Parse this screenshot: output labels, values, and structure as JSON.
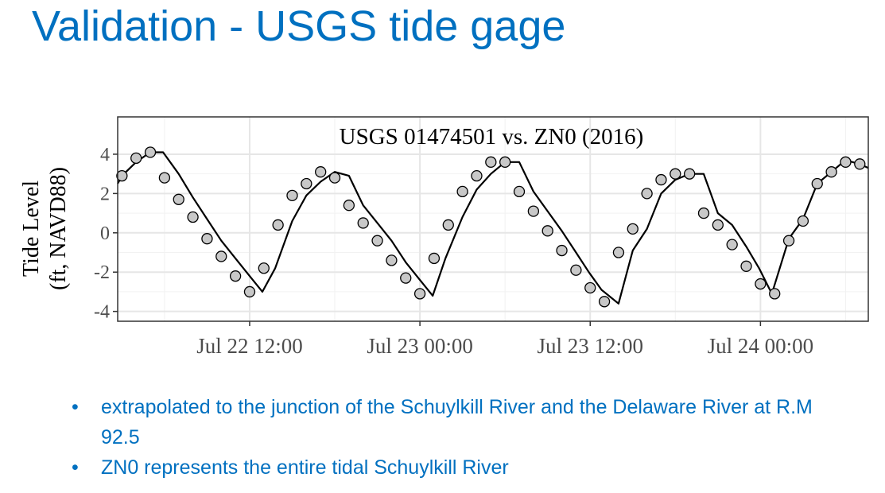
{
  "slide": {
    "title": "Validation - USGS tide gage",
    "bullets": [
      "extrapolated to the junction of the Schuylkill River and the Delaware River at R.M 92.5",
      "ZN0 represents the entire tidal Schuylkill River"
    ],
    "bullet_symbol": "•",
    "accent_color": "#0070C0"
  },
  "chart_data": {
    "type": "line",
    "title": "USGS 01474501 vs. ZN0 (2016)",
    "ylabel_line1": "Tide Level",
    "ylabel_line2": "(ft, NAVD88)",
    "xlabel": "",
    "x_axis_unit": "hours since Jul 22 00:00 (2016)",
    "xlim": [
      2.7,
      55.6
    ],
    "ylim": [
      -4.5,
      5.9
    ],
    "y_ticks": [
      4,
      2,
      0,
      -2,
      -4
    ],
    "x_ticks": [
      {
        "x": 12,
        "label": "Jul 22 12:00"
      },
      {
        "x": 24,
        "label": "Jul 23 00:00"
      },
      {
        "x": 36,
        "label": "Jul 23 12:00"
      },
      {
        "x": 48,
        "label": "Jul 24 00:00"
      }
    ],
    "grid": true,
    "legend": "none",
    "series": [
      {
        "name": "",
        "role": "model line",
        "color": "#000000",
        "x": [
          2.7,
          3.0,
          4.0,
          5.0,
          5.9,
          7.0,
          8.0,
          9.0,
          10.0,
          11.0,
          12.0,
          12.9,
          13.8,
          15.0,
          16.0,
          17.0,
          18.0,
          19.0,
          20.0,
          21.0,
          22.0,
          23.0,
          24.0,
          24.9,
          25.8,
          27.0,
          28.0,
          29.0,
          30.0,
          31.0,
          32.0,
          33.0,
          34.0,
          35.0,
          35.9,
          36.8,
          38.0,
          39.0,
          40.0,
          41.0,
          42.0,
          43.0,
          44.0,
          45.0,
          46.0,
          47.0,
          47.9,
          48.8,
          50.0,
          51.0,
          52.0,
          53.0,
          54.0,
          55.0,
          55.6
        ],
        "y": [
          2.5,
          2.9,
          3.6,
          4.1,
          4.1,
          3.0,
          1.8,
          0.7,
          -0.4,
          -1.3,
          -2.2,
          -3.0,
          -1.8,
          0.6,
          1.9,
          2.6,
          3.1,
          2.9,
          1.4,
          0.5,
          -0.4,
          -1.5,
          -2.4,
          -3.2,
          -1.3,
          0.8,
          2.2,
          3.0,
          3.6,
          3.6,
          2.1,
          1.1,
          0.1,
          -1.0,
          -2.0,
          -2.9,
          -3.6,
          -0.9,
          0.2,
          2.0,
          2.7,
          3.0,
          3.0,
          1.0,
          0.4,
          -0.7,
          -1.8,
          -3.1,
          -0.3,
          0.7,
          2.5,
          3.1,
          3.7,
          3.5,
          3.3
        ]
      },
      {
        "name": "",
        "role": "gage observations",
        "color": "#C8C8C8",
        "x": [
          3.0,
          4.0,
          5.0,
          6.0,
          7.0,
          8.0,
          9.0,
          10.0,
          11.0,
          12.0,
          13.0,
          14.0,
          15.0,
          16.0,
          17.0,
          18.0,
          19.0,
          20.0,
          21.0,
          22.0,
          23.0,
          24.0,
          25.0,
          26.0,
          27.0,
          28.0,
          29.0,
          30.0,
          31.0,
          32.0,
          33.0,
          34.0,
          35.0,
          36.0,
          37.0,
          38.0,
          39.0,
          40.0,
          41.0,
          42.0,
          43.0,
          44.0,
          45.0,
          46.0,
          47.0,
          48.0,
          49.0,
          50.0,
          51.0,
          52.0,
          53.0,
          54.0,
          55.0
        ],
        "y": [
          2.9,
          3.8,
          4.1,
          2.8,
          1.7,
          0.8,
          -0.3,
          -1.2,
          -2.2,
          -3.0,
          -1.8,
          0.4,
          1.9,
          2.5,
          3.1,
          2.8,
          1.4,
          0.5,
          -0.4,
          -1.4,
          -2.3,
          -3.1,
          -1.3,
          0.4,
          2.1,
          2.9,
          3.6,
          3.6,
          2.1,
          1.1,
          0.1,
          -0.9,
          -1.9,
          -2.8,
          -3.5,
          -1.0,
          0.2,
          2.0,
          2.7,
          3.0,
          3.0,
          1.0,
          0.4,
          -0.6,
          -1.7,
          -2.6,
          -3.1,
          -0.4,
          0.6,
          2.5,
          3.1,
          3.6,
          3.5
        ]
      }
    ]
  }
}
